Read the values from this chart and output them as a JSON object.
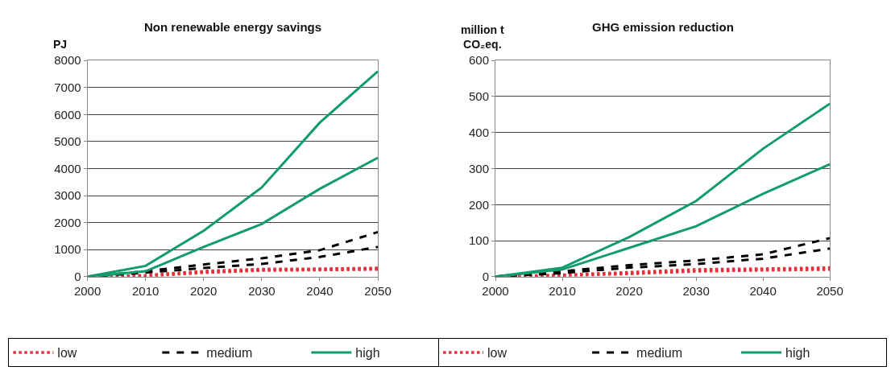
{
  "chart_data": [
    {
      "type": "line",
      "title": "Non renewable energy savings",
      "ylabel": "PJ",
      "x": [
        2000,
        2010,
        2020,
        2030,
        2040,
        2050
      ],
      "xlim": [
        2000,
        2050
      ],
      "xticks": [
        2000,
        2010,
        2020,
        2030,
        2040,
        2050
      ],
      "ylim": [
        0,
        8000
      ],
      "yticks": [
        0,
        1000,
        2000,
        3000,
        4000,
        5000,
        6000,
        7000,
        8000
      ],
      "grid": "y",
      "legend": "bottom",
      "marker": "none",
      "series": [
        {
          "name": "low",
          "color": "#e8303a",
          "line_style": "dotted",
          "values": [
            0,
            50,
            200,
            280,
            290,
            320
          ]
        },
        {
          "color": "#e8303a",
          "line_style": "dotted",
          "values": [
            0,
            20,
            150,
            230,
            250,
            270
          ]
        },
        {
          "name": "medium",
          "color": "#000000",
          "line_style": "dashed",
          "values": [
            0,
            200,
            450,
            680,
            980,
            1650
          ]
        },
        {
          "color": "#000000",
          "line_style": "dashed",
          "values": [
            0,
            150,
            320,
            470,
            730,
            1100
          ]
        },
        {
          "name": "high",
          "color": "#129c6c",
          "line_style": "solid",
          "values": [
            0,
            400,
            1700,
            3300,
            5700,
            7600
          ]
        },
        {
          "color": "#129c6c",
          "line_style": "solid",
          "values": [
            0,
            200,
            1100,
            1950,
            3250,
            4400
          ]
        }
      ]
    },
    {
      "type": "line",
      "title": "GHG emission reduction",
      "ylabel": "million t CO₂eq.",
      "x": [
        2000,
        2010,
        2020,
        2030,
        2040,
        2050
      ],
      "xlim": [
        2000,
        2050
      ],
      "xticks": [
        2000,
        2010,
        2020,
        2030,
        2040,
        2050
      ],
      "ylim": [
        0,
        600
      ],
      "yticks": [
        0,
        100,
        200,
        300,
        400,
        500,
        600
      ],
      "grid": "y",
      "legend": "bottom",
      "marker": "none",
      "series": [
        {
          "name": "low",
          "color": "#e8303a",
          "line_style": "dotted",
          "values": [
            0,
            5,
            12,
            20,
            22,
            25
          ]
        },
        {
          "color": "#e8303a",
          "line_style": "dotted",
          "values": [
            0,
            3,
            8,
            15,
            18,
            20
          ]
        },
        {
          "name": "medium",
          "color": "#000000",
          "line_style": "dashed",
          "values": [
            0,
            15,
            32,
            45,
            62,
            107
          ]
        },
        {
          "color": "#000000",
          "line_style": "dashed",
          "values": [
            0,
            10,
            25,
            35,
            50,
            78
          ]
        },
        {
          "name": "high",
          "color": "#129c6c",
          "line_style": "solid",
          "values": [
            0,
            25,
            110,
            210,
            355,
            480
          ]
        },
        {
          "color": "#129c6c",
          "line_style": "solid",
          "values": [
            0,
            20,
            80,
            140,
            230,
            312
          ]
        }
      ]
    }
  ]
}
